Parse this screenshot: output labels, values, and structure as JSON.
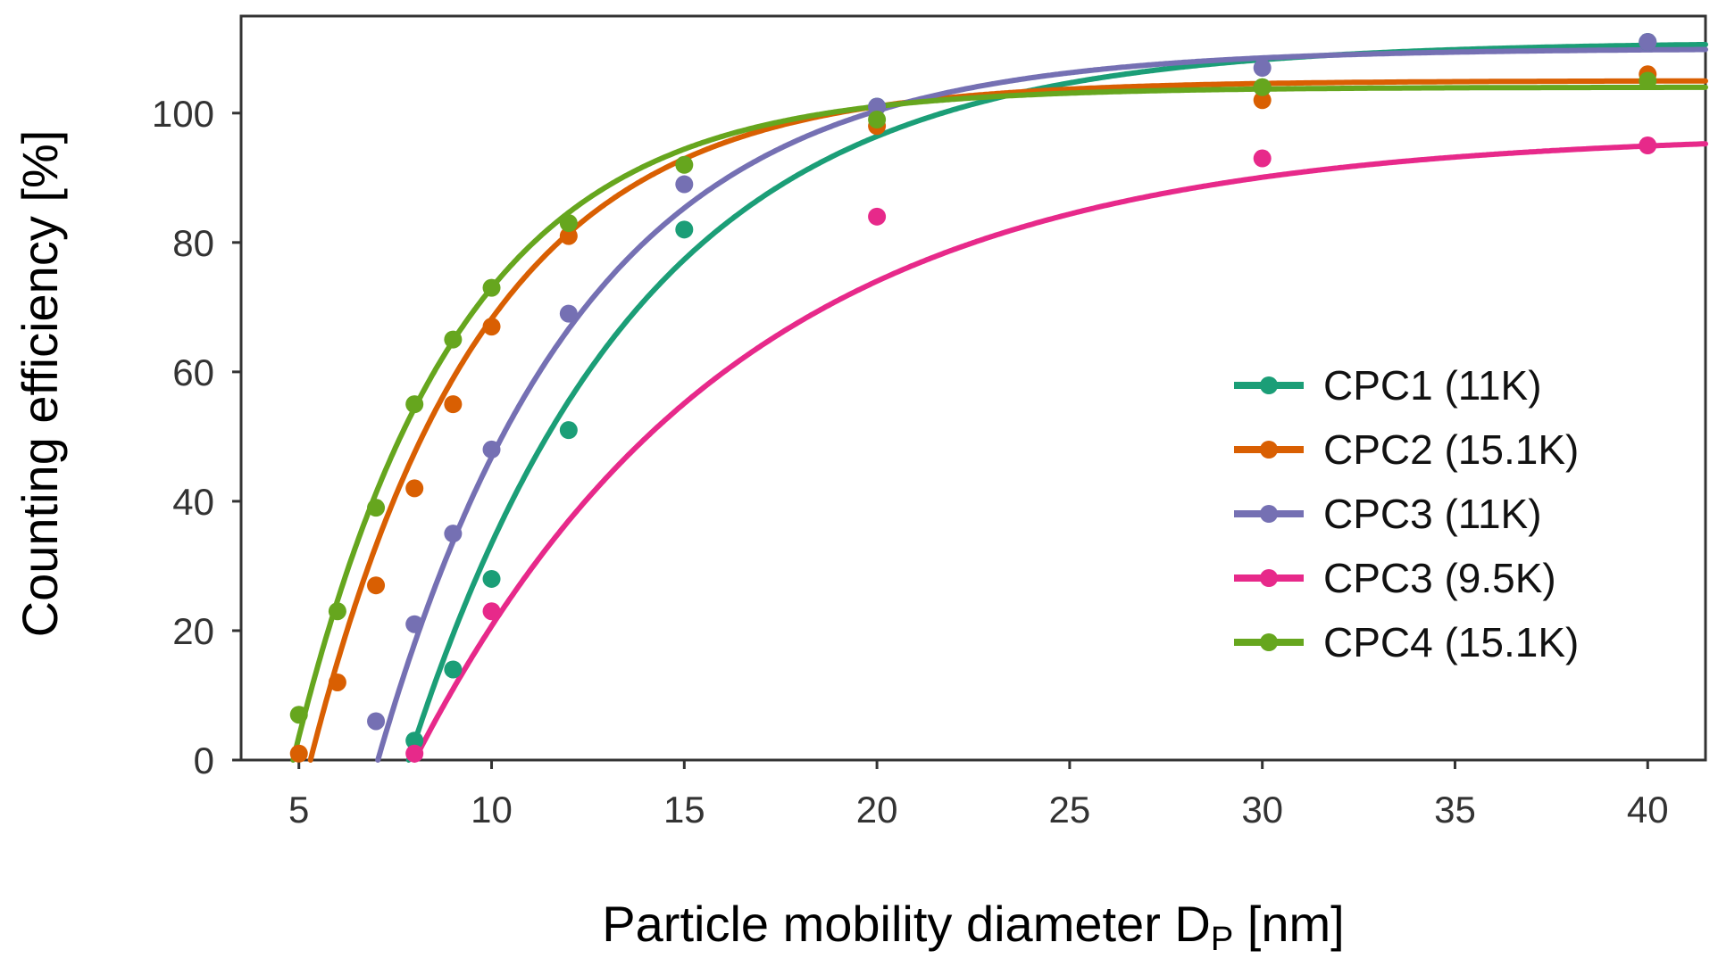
{
  "chart_data": {
    "type": "scatter",
    "title": "",
    "xlabel": "Particle mobility diameter D",
    "xlabel_sub": "P",
    "xlabel_unit": "[nm]",
    "ylabel": "Counting efficiency [%]",
    "xlim": [
      3.5,
      41.5
    ],
    "ylim": [
      0,
      115
    ],
    "x_ticks": [
      5,
      10,
      15,
      20,
      25,
      30,
      35,
      40
    ],
    "y_ticks": [
      0,
      20,
      40,
      60,
      80,
      100
    ],
    "grid": false,
    "legend_position": "center-right",
    "series": [
      {
        "name": "CPC1 (11K)",
        "color": "#1b9e77",
        "x": [
          8,
          9,
          10,
          12,
          15,
          20,
          30,
          40
        ],
        "y": [
          3,
          14,
          28,
          51,
          82,
          101,
          104,
          111
        ],
        "fit": {
          "a": 111,
          "b": 0.167,
          "d0": 7.85
        }
      },
      {
        "name": "CPC2 (15.1K)",
        "color": "#d95f02",
        "x": [
          5,
          6,
          7,
          8,
          9,
          10,
          12,
          20,
          30,
          40
        ],
        "y": [
          1,
          12,
          27,
          42,
          55,
          67,
          81,
          98,
          102,
          106
        ],
        "fit": {
          "a": 105,
          "b": 0.223,
          "d0": 5.3
        }
      },
      {
        "name": "CPC3 (11K)",
        "color": "#7570b3",
        "x": [
          7,
          8,
          9,
          10,
          12,
          15,
          20,
          30,
          40
        ],
        "y": [
          6,
          21,
          35,
          48,
          69,
          89,
          101,
          107,
          111
        ],
        "fit": {
          "a": 110,
          "b": 0.188,
          "d0": 7.05
        }
      },
      {
        "name": "CPC3 (9.5K)",
        "color": "#e7298a",
        "x": [
          8,
          10,
          20,
          30,
          40
        ],
        "y": [
          1,
          23,
          84,
          93,
          95
        ],
        "fit": {
          "a": 97,
          "b": 0.12,
          "d0": 8.0
        }
      },
      {
        "name": "CPC4 (15.1K)",
        "color": "#66a61e",
        "x": [
          5,
          6,
          7,
          8,
          9,
          10,
          12,
          15,
          20,
          30,
          40
        ],
        "y": [
          7,
          23,
          39,
          55,
          65,
          73,
          83,
          92,
          99,
          104,
          105
        ],
        "fit": {
          "a": 104,
          "b": 0.235,
          "d0": 4.85
        }
      }
    ]
  }
}
